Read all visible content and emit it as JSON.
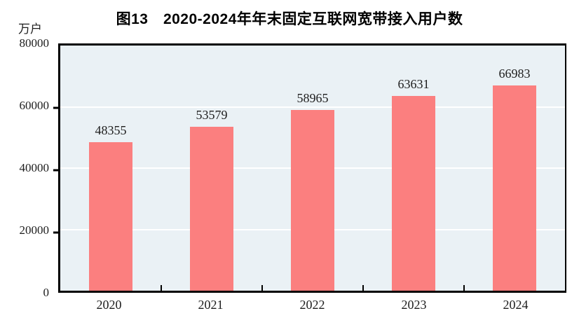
{
  "chart_data": {
    "type": "bar",
    "title": "图13　2020-2024年年末固定互联网宽带接入用户数",
    "unit_label": "万户",
    "categories": [
      "2020",
      "2021",
      "2022",
      "2023",
      "2024"
    ],
    "values": [
      48355,
      53579,
      58965,
      63631,
      66983
    ],
    "value_labels": [
      "48355",
      "53579",
      "58965",
      "63631",
      "66983"
    ],
    "ylim": [
      0,
      80000
    ],
    "yticks": [
      0,
      20000,
      40000,
      60000,
      80000
    ],
    "ytick_labels": [
      "0",
      "20000",
      "40000",
      "60000",
      "80000"
    ],
    "xlabel": "",
    "ylabel": "万户",
    "legend": "none",
    "grid": "horizontal",
    "colors": {
      "bar": "#FB7F7F",
      "plot_background": "#EAF1F5",
      "gridline": "#FFFFFF",
      "axis": "#000000",
      "text": "#1D1D1D"
    }
  }
}
